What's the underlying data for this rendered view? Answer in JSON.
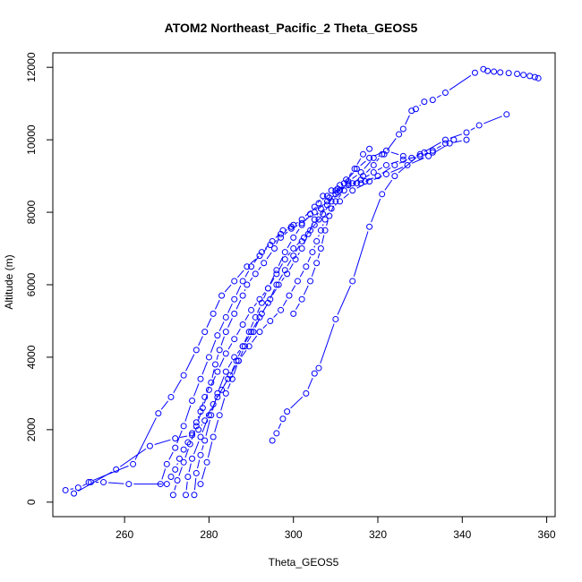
{
  "chart_data": {
    "type": "line",
    "title": "ATOM2 Northeast_Pacific_2 Theta_GEOS5",
    "xlabel": "Theta_GEOS5",
    "ylabel": "Altitude (m)",
    "xlim": [
      243,
      362
    ],
    "ylim": [
      -400,
      12400
    ],
    "x_ticks": [
      260,
      280,
      300,
      320,
      340,
      360
    ],
    "y_ticks": [
      0,
      2000,
      4000,
      6000,
      8000,
      10000,
      12000
    ],
    "grid": false,
    "marker": "open-circle",
    "color": "#0000ff",
    "series": [
      {
        "values": [
          [
            358.0,
            11700
          ],
          [
            357.2,
            11730
          ],
          [
            356.0,
            11760
          ],
          [
            354.5,
            11790
          ],
          [
            353.0,
            11820
          ],
          [
            351.0,
            11840
          ],
          [
            349.0,
            11860
          ],
          [
            347.5,
            11880
          ],
          [
            346.0,
            11900
          ],
          [
            345.0,
            11950
          ],
          [
            343.0,
            11850
          ],
          [
            336.0,
            11300
          ],
          [
            333.0,
            11100
          ],
          [
            331.0,
            11050
          ],
          [
            329.0,
            10850
          ],
          [
            328.0,
            10800
          ],
          [
            326.0,
            10300
          ],
          [
            325.0,
            10150
          ],
          [
            321.5,
            9600
          ],
          [
            319.0,
            9500
          ],
          [
            316.0,
            9100
          ],
          [
            313.0,
            8850
          ],
          [
            311.0,
            8750
          ],
          [
            309.0,
            8600
          ],
          [
            307.0,
            8450
          ],
          [
            305.0,
            8150
          ],
          [
            302.0,
            7800
          ],
          [
            299.5,
            7600
          ],
          [
            297.0,
            7400
          ],
          [
            295.5,
            7000
          ],
          [
            293.0,
            6600
          ],
          [
            291.0,
            6300
          ],
          [
            289.0,
            6000
          ],
          [
            288.0,
            5700
          ],
          [
            286.0,
            5200
          ],
          [
            284.0,
            4700
          ],
          [
            282.5,
            4200
          ],
          [
            281.5,
            3800
          ],
          [
            280.5,
            3300
          ],
          [
            279.0,
            2900
          ],
          [
            278.0,
            2500
          ],
          [
            277.0,
            2200
          ],
          [
            276.0,
            1900
          ],
          [
            275.0,
            1650
          ],
          [
            274.0,
            1450
          ],
          [
            273.0,
            1200
          ],
          [
            272.0,
            900
          ],
          [
            271.0,
            700
          ],
          [
            270.0,
            500
          ],
          [
            261.0,
            500
          ],
          [
            255.0,
            550
          ],
          [
            252.0,
            550
          ],
          [
            249.0,
            400
          ],
          [
            246.0,
            330
          ]
        ]
      },
      {
        "values": [
          [
            248.0,
            240
          ],
          [
            258.0,
            900
          ],
          [
            266.0,
            1550
          ],
          [
            272.0,
            1760
          ],
          [
            276.0,
            1850
          ],
          [
            277.5,
            2000
          ],
          [
            279.0,
            2250
          ],
          [
            281.0,
            2700
          ],
          [
            283.0,
            3100
          ],
          [
            285.0,
            3500
          ],
          [
            286.5,
            3900
          ],
          [
            288.0,
            4300
          ],
          [
            289.5,
            4700
          ],
          [
            291.0,
            5100
          ],
          [
            292.5,
            5500
          ],
          [
            294.0,
            5900
          ],
          [
            296.0,
            6400
          ],
          [
            298.0,
            6900
          ],
          [
            300.0,
            7300
          ],
          [
            302.0,
            7650
          ],
          [
            304.0,
            7950
          ],
          [
            306.0,
            8250
          ],
          [
            308.0,
            8450
          ],
          [
            310.0,
            8600
          ],
          [
            313.0,
            8750
          ],
          [
            316.0,
            8800
          ],
          [
            320.0,
            9000
          ],
          [
            324.0,
            9300
          ],
          [
            328.0,
            9500
          ],
          [
            331.0,
            9650
          ],
          [
            333.0,
            9650
          ]
        ]
      },
      {
        "values": [
          [
            251.5,
            550
          ],
          [
            262.0,
            1050
          ],
          [
            268.0,
            2450
          ],
          [
            271.0,
            2900
          ],
          [
            274.0,
            3500
          ],
          [
            277.0,
            4200
          ],
          [
            279.0,
            4700
          ],
          [
            281.0,
            5200
          ],
          [
            283.0,
            5700
          ],
          [
            286.0,
            6100
          ],
          [
            289.0,
            6500
          ],
          [
            292.0,
            6800
          ],
          [
            294.5,
            7100
          ],
          [
            297.0,
            7300
          ],
          [
            299.5,
            7550
          ],
          [
            302.0,
            7700
          ],
          [
            305.0,
            8000
          ],
          [
            308.0,
            8300
          ],
          [
            310.5,
            8550
          ],
          [
            313.0,
            8750
          ],
          [
            316.0,
            8900
          ],
          [
            319.0,
            9100
          ],
          [
            322.0,
            9300
          ],
          [
            326.0,
            9450
          ],
          [
            330.0,
            9550
          ],
          [
            333.0,
            9700
          ],
          [
            336.0,
            9900
          ],
          [
            338.0,
            10000
          ]
        ]
      },
      {
        "values": [
          [
            295.0,
            1700
          ],
          [
            296.0,
            1900
          ],
          [
            297.5,
            2300
          ],
          [
            298.5,
            2500
          ],
          [
            303.0,
            3000
          ],
          [
            305.0,
            3550
          ],
          [
            306.0,
            3700
          ],
          [
            310.0,
            5050
          ],
          [
            314.0,
            6100
          ],
          [
            318.0,
            7600
          ],
          [
            321.0,
            8500
          ],
          [
            324.0,
            9000
          ],
          [
            330.0,
            9600
          ],
          [
            336.0,
            10000
          ],
          [
            341.0,
            10200
          ],
          [
            344.0,
            10400
          ],
          [
            350.5,
            10700
          ]
        ]
      },
      {
        "values": [
          [
            276.5,
            200
          ],
          [
            277.0,
            800
          ],
          [
            278.0,
            1300
          ],
          [
            279.0,
            1700
          ],
          [
            280.5,
            2400
          ],
          [
            282.0,
            3000
          ],
          [
            284.0,
            3600
          ],
          [
            286.0,
            4000
          ],
          [
            288.0,
            4300
          ],
          [
            290.0,
            4700
          ],
          [
            292.0,
            5100
          ],
          [
            294.0,
            5500
          ],
          [
            296.0,
            6000
          ],
          [
            298.0,
            6400
          ],
          [
            300.0,
            6800
          ],
          [
            302.0,
            7200
          ],
          [
            304.0,
            7500
          ],
          [
            306.0,
            7800
          ],
          [
            308.0,
            8200
          ],
          [
            310.0,
            8500
          ],
          [
            312.0,
            8800
          ],
          [
            315.0,
            9200
          ],
          [
            318.0,
            9500
          ],
          [
            322.0,
            9700
          ],
          [
            326.0,
            9550
          ]
        ]
      },
      {
        "values": [
          [
            271.5,
            200
          ],
          [
            272.5,
            600
          ],
          [
            274.0,
            1100
          ],
          [
            275.5,
            1600
          ],
          [
            277.0,
            2100
          ],
          [
            278.5,
            2600
          ],
          [
            280.0,
            3100
          ],
          [
            282.0,
            3600
          ],
          [
            284.0,
            4100
          ],
          [
            286.0,
            4500
          ],
          [
            288.0,
            4900
          ],
          [
            290.0,
            5300
          ],
          [
            292.0,
            5600
          ],
          [
            294.0,
            5900
          ],
          [
            296.0,
            6300
          ],
          [
            298.0,
            6700
          ],
          [
            300.0,
            7000
          ],
          [
            302.5,
            7300
          ],
          [
            305.0,
            7650
          ],
          [
            307.0,
            7950
          ],
          [
            309.0,
            8300
          ],
          [
            311.0,
            8600
          ],
          [
            313.0,
            8800
          ],
          [
            315.0,
            8800
          ],
          [
            317.0,
            8850
          ]
        ]
      },
      {
        "values": [
          [
            274.5,
            200
          ],
          [
            275.0,
            700
          ],
          [
            276.0,
            1200
          ],
          [
            278.0,
            1800
          ],
          [
            280.0,
            2400
          ],
          [
            282.0,
            2900
          ],
          [
            284.5,
            3400
          ],
          [
            287.0,
            3900
          ],
          [
            289.5,
            4300
          ],
          [
            292.0,
            4700
          ],
          [
            294.5,
            5000
          ],
          [
            297.0,
            5300
          ],
          [
            299.0,
            5700
          ],
          [
            301.0,
            6100
          ],
          [
            303.0,
            6500
          ],
          [
            304.5,
            6900
          ],
          [
            305.5,
            7200
          ],
          [
            306.5,
            7500
          ],
          [
            307.5,
            7800
          ],
          [
            309.0,
            8100
          ],
          [
            311.0,
            8300
          ],
          [
            314.0,
            8600
          ],
          [
            318.0,
            8850
          ],
          [
            322.0,
            9050
          ],
          [
            327.0,
            9300
          ],
          [
            332.0,
            9550
          ],
          [
            337.0,
            9900
          ],
          [
            341.0,
            10000
          ]
        ]
      },
      {
        "values": [
          [
            278.0,
            500
          ],
          [
            279.5,
            1100
          ],
          [
            281.0,
            1800
          ],
          [
            282.5,
            2400
          ],
          [
            284.0,
            3000
          ],
          [
            285.5,
            3400
          ],
          [
            287.0,
            3900
          ],
          [
            288.5,
            4300
          ],
          [
            290.5,
            4700
          ],
          [
            292.5,
            5200
          ],
          [
            294.5,
            5600
          ],
          [
            296.5,
            6000
          ],
          [
            298.5,
            6300
          ],
          [
            300.5,
            6700
          ],
          [
            302.0,
            7000
          ],
          [
            303.5,
            7400
          ],
          [
            305.0,
            7800
          ],
          [
            306.5,
            8100
          ],
          [
            308.5,
            8400
          ],
          [
            310.5,
            8650
          ],
          [
            312.5,
            8900
          ],
          [
            314.5,
            9200
          ],
          [
            316.5,
            9600
          ],
          [
            318.0,
            9750
          ]
        ]
      },
      {
        "values": [
          [
            268.5,
            500
          ],
          [
            270.0,
            1050
          ],
          [
            272.0,
            1500
          ],
          [
            274.0,
            2100
          ],
          [
            276.0,
            2800
          ],
          [
            278.0,
            3400
          ],
          [
            280.0,
            4000
          ],
          [
            282.0,
            4600
          ],
          [
            284.0,
            5100
          ],
          [
            286.0,
            5600
          ],
          [
            288.0,
            6100
          ],
          [
            290.0,
            6500
          ],
          [
            292.5,
            6900
          ],
          [
            295.0,
            7200
          ],
          [
            297.5,
            7500
          ],
          [
            300.0,
            7650
          ]
        ]
      },
      {
        "values": [
          [
            300.0,
            5200
          ],
          [
            302.0,
            5600
          ],
          [
            304.0,
            6100
          ],
          [
            305.5,
            6600
          ],
          [
            306.5,
            7000
          ],
          [
            307.5,
            7500
          ],
          [
            308.5,
            7900
          ],
          [
            310.0,
            8300
          ],
          [
            312.0,
            8600
          ],
          [
            314.0,
            8800
          ],
          [
            316.5,
            9000
          ],
          [
            319.0,
            9300
          ],
          [
            321.0,
            9600
          ]
        ]
      }
    ]
  }
}
